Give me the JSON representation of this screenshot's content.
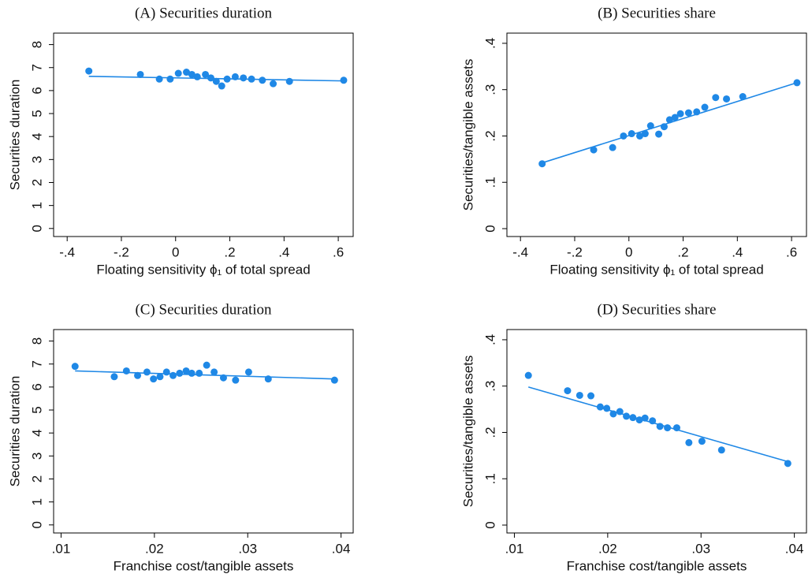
{
  "chart_data": [
    {
      "type": "scatter",
      "title": "(A) Securities duration",
      "x_label": "Floating sensitivity ϕ₁ of total spread",
      "y_label": "Securities duration",
      "color": "#1f88e6",
      "x": [
        -0.32,
        -0.13,
        -0.06,
        -0.02,
        0.01,
        0.04,
        0.06,
        0.08,
        0.11,
        0.13,
        0.15,
        0.17,
        0.19,
        0.22,
        0.25,
        0.28,
        0.32,
        0.36,
        0.42,
        0.62
      ],
      "y": [
        6.85,
        6.7,
        6.5,
        6.5,
        6.75,
        6.8,
        6.7,
        6.6,
        6.7,
        6.55,
        6.4,
        6.2,
        6.5,
        6.6,
        6.55,
        6.5,
        6.45,
        6.3,
        6.4,
        6.45
      ],
      "fit": {
        "x": [
          -0.32,
          0.62
        ],
        "y": [
          6.62,
          6.42
        ]
      },
      "xlim": [
        -0.45,
        0.655
      ],
      "ylim": [
        -0.35,
        8.5
      ],
      "xticks": [
        {
          "value": -0.4,
          "label": "-.4"
        },
        {
          "value": -0.2,
          "label": "-.2"
        },
        0,
        {
          "value": 0.2,
          "label": ".2"
        },
        {
          "value": 0.4,
          "label": ".4"
        },
        {
          "value": 0.6,
          "label": ".6"
        }
      ],
      "yticks": [
        0,
        1,
        2,
        3,
        4,
        5,
        6,
        7,
        8
      ]
    },
    {
      "type": "scatter",
      "title": "(B) Securities share",
      "x_label": "Floating sensitivity ϕ₁ of total spread",
      "y_label": "Securities/tangible assets",
      "color": "#1f88e6",
      "x": [
        -0.32,
        -0.13,
        -0.06,
        -0.02,
        0.01,
        0.04,
        0.06,
        0.08,
        0.11,
        0.13,
        0.15,
        0.17,
        0.19,
        0.22,
        0.25,
        0.28,
        0.32,
        0.36,
        0.42,
        0.62
      ],
      "y": [
        0.14,
        0.17,
        0.175,
        0.2,
        0.205,
        0.2,
        0.205,
        0.222,
        0.204,
        0.22,
        0.235,
        0.24,
        0.248,
        0.25,
        0.252,
        0.262,
        0.283,
        0.28,
        0.285,
        0.315
      ],
      "fit": {
        "x": [
          -0.32,
          0.62
        ],
        "y": [
          0.142,
          0.315
        ]
      },
      "xlim": [
        -0.45,
        0.655
      ],
      "ylim": [
        -0.017,
        0.422
      ],
      "xticks": [
        {
          "value": -0.4,
          "label": "-.4"
        },
        {
          "value": -0.2,
          "label": "-.2"
        },
        0,
        {
          "value": 0.2,
          "label": ".2"
        },
        {
          "value": 0.4,
          "label": ".4"
        },
        {
          "value": 0.6,
          "label": ".6"
        }
      ],
      "yticks": [
        0,
        {
          "value": 0.1,
          "label": ".1"
        },
        {
          "value": 0.2,
          "label": ".2"
        },
        {
          "value": 0.3,
          "label": ".3"
        },
        {
          "value": 0.4,
          "label": ".4"
        }
      ]
    },
    {
      "type": "scatter",
      "title": "(C) Securities duration",
      "x_label": "Franchise cost/tangible assets",
      "y_label": "Securities duration",
      "color": "#1f88e6",
      "x": [
        0.0115,
        0.0157,
        0.017,
        0.0182,
        0.0192,
        0.0199,
        0.0206,
        0.0213,
        0.022,
        0.0227,
        0.0234,
        0.024,
        0.0248,
        0.0256,
        0.0264,
        0.0274,
        0.0287,
        0.0301,
        0.0322,
        0.0393
      ],
      "y": [
        6.9,
        6.45,
        6.7,
        6.5,
        6.65,
        6.35,
        6.45,
        6.65,
        6.5,
        6.6,
        6.7,
        6.6,
        6.6,
        6.95,
        6.65,
        6.4,
        6.3,
        6.65,
        6.35,
        6.3
      ],
      "fit": {
        "x": [
          0.0115,
          0.0393
        ],
        "y": [
          6.7,
          6.35
        ]
      },
      "xlim": [
        0.0092,
        0.0413
      ],
      "ylim": [
        -0.35,
        8.5
      ],
      "xticks": [
        {
          "value": 0.01,
          "label": ".01"
        },
        {
          "value": 0.02,
          "label": ".02"
        },
        {
          "value": 0.03,
          "label": ".03"
        },
        {
          "value": 0.04,
          "label": ".04"
        }
      ],
      "yticks": [
        0,
        1,
        2,
        3,
        4,
        5,
        6,
        7,
        8
      ]
    },
    {
      "type": "scatter",
      "title": "(D) Securities share",
      "x_label": "Franchise cost/tangible assets",
      "y_label": "Securities/tangible assets",
      "color": "#1f88e6",
      "x": [
        0.0115,
        0.0157,
        0.017,
        0.0182,
        0.0192,
        0.0199,
        0.0206,
        0.0213,
        0.022,
        0.0227,
        0.0234,
        0.024,
        0.0248,
        0.0256,
        0.0264,
        0.0274,
        0.0287,
        0.0301,
        0.0322,
        0.0393
      ],
      "y": [
        0.323,
        0.29,
        0.28,
        0.279,
        0.255,
        0.252,
        0.24,
        0.245,
        0.235,
        0.232,
        0.227,
        0.231,
        0.225,
        0.213,
        0.21,
        0.21,
        0.178,
        0.181,
        0.162,
        0.133
      ],
      "fit": {
        "x": [
          0.0115,
          0.0393
        ],
        "y": [
          0.298,
          0.137
        ]
      },
      "xlim": [
        0.0092,
        0.0413
      ],
      "ylim": [
        -0.017,
        0.422
      ],
      "xticks": [
        {
          "value": 0.01,
          "label": ".01"
        },
        {
          "value": 0.02,
          "label": ".02"
        },
        {
          "value": 0.03,
          "label": ".03"
        },
        {
          "value": 0.04,
          "label": ".04"
        }
      ],
      "yticks": [
        0,
        {
          "value": 0.1,
          "label": ".1"
        },
        {
          "value": 0.2,
          "label": ".2"
        },
        {
          "value": 0.3,
          "label": ".3"
        },
        {
          "value": 0.4,
          "label": ".4"
        }
      ]
    }
  ]
}
